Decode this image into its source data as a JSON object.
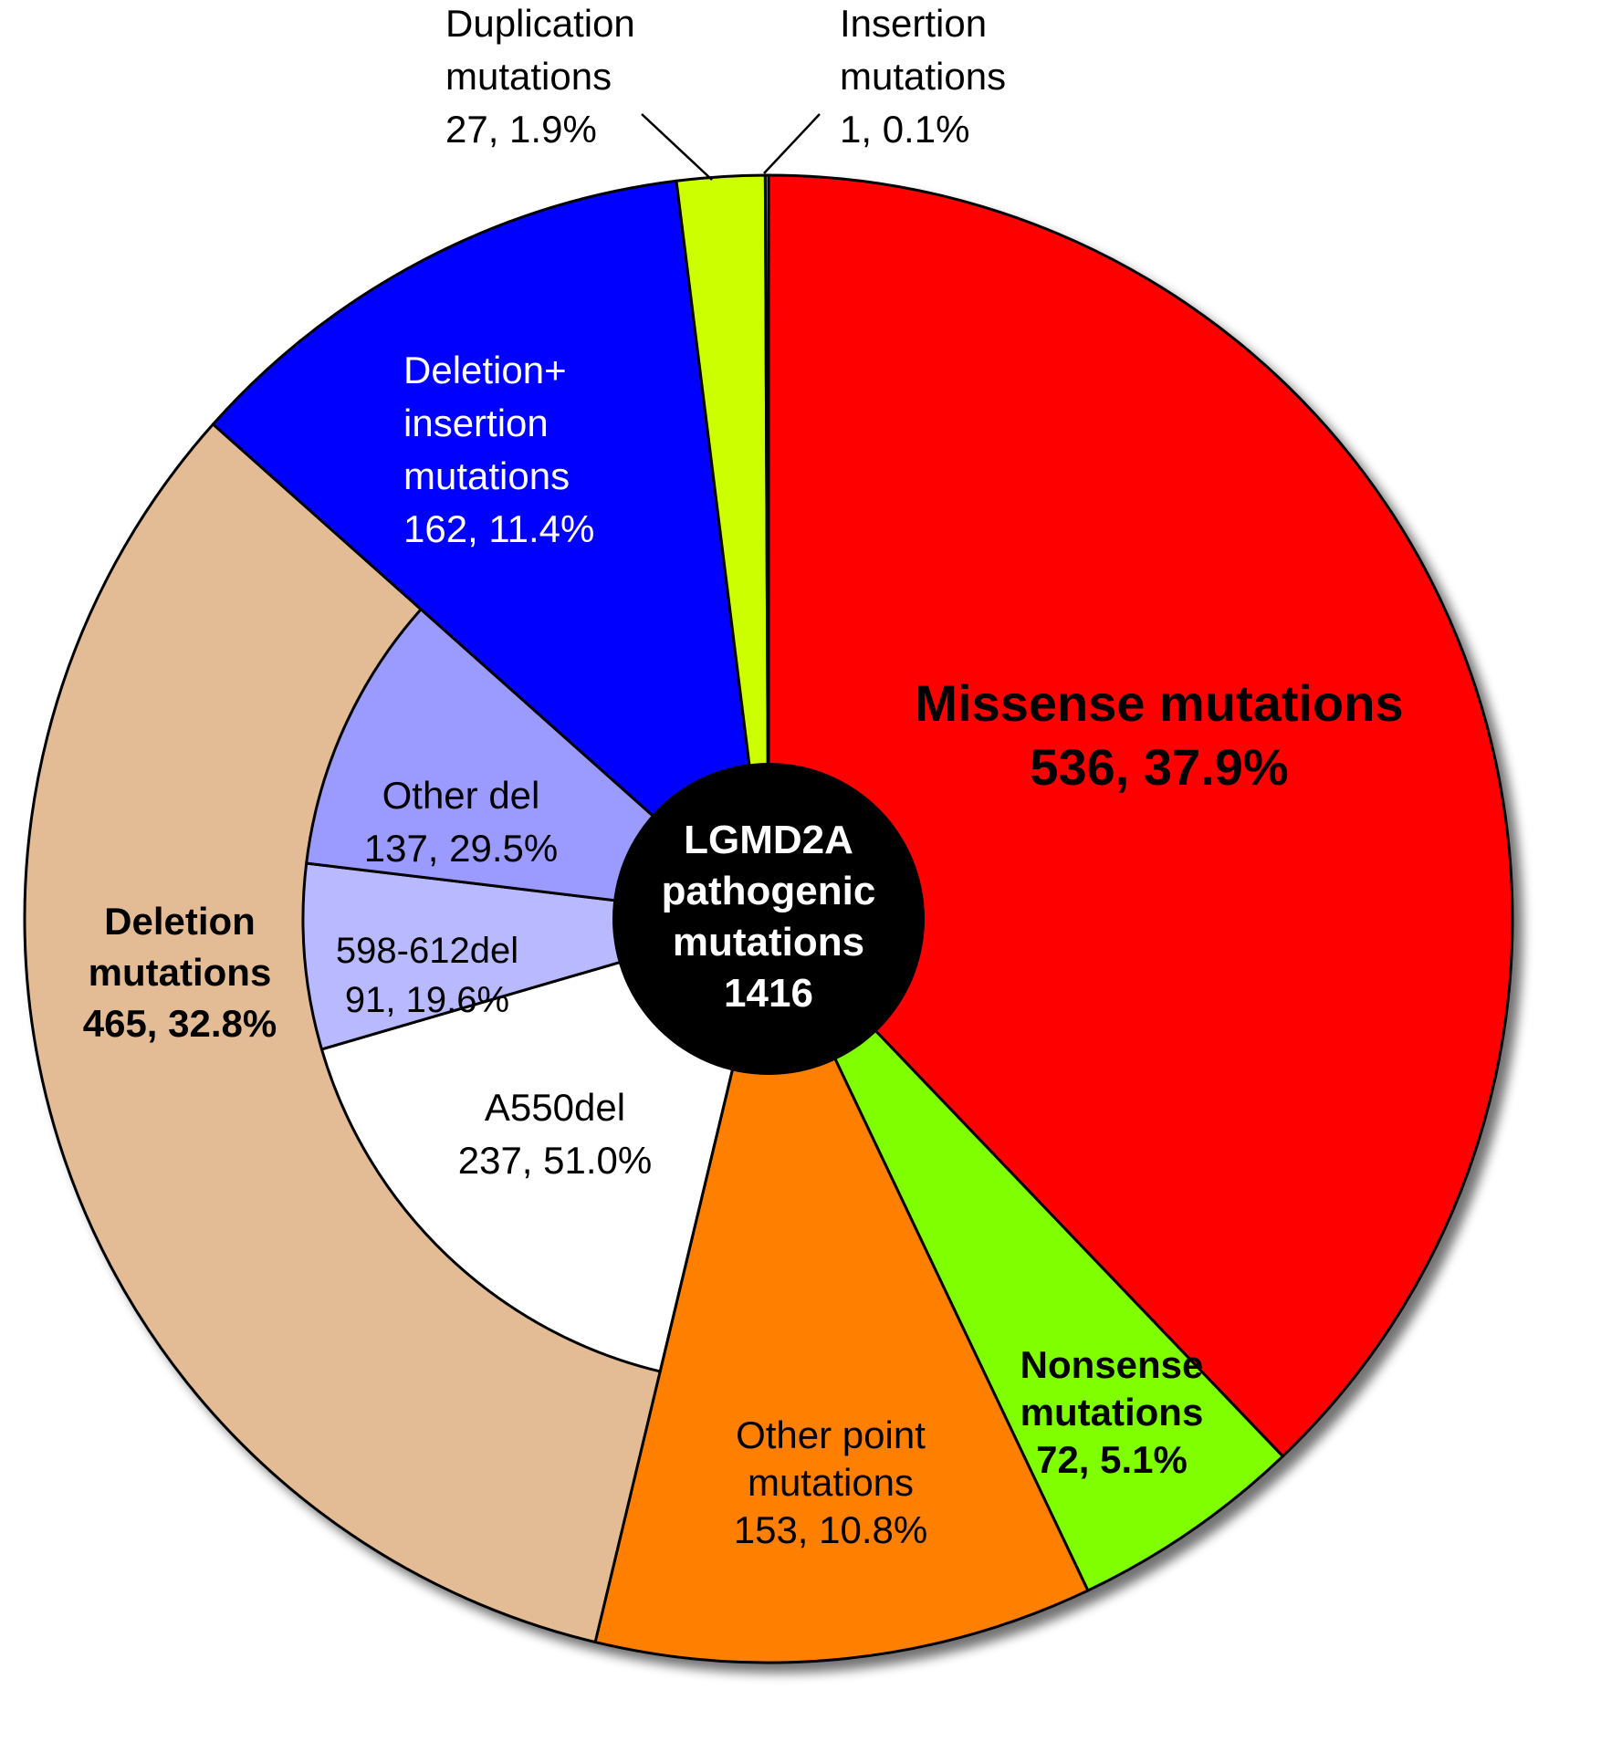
{
  "chart_data": {
    "type": "pie",
    "center_label": [
      "LGMD2A",
      "pathogenic",
      "mutations",
      "1416"
    ],
    "total": 1416,
    "slices": [
      {
        "name": "Missense mutations",
        "value": 536,
        "percent": "37.9%",
        "label": [
          "Missense mutations",
          "536, 37.9%"
        ],
        "color": "#ff0000",
        "label_color": "#000000",
        "bold": true
      },
      {
        "name": "Nonsense mutations",
        "value": 72,
        "percent": "5.1%",
        "label": [
          "Nonsense",
          "mutations",
          "72, 5.1%"
        ],
        "color": "#80ff00",
        "label_color": "#000000",
        "bold": true
      },
      {
        "name": "Other point mutations",
        "value": 153,
        "percent": "10.8%",
        "label": [
          "Other point",
          "mutations",
          "153, 10.8%"
        ],
        "color": "#ff8000",
        "label_color": "#000000",
        "bold": false
      },
      {
        "name": "Deletion mutations",
        "value": 465,
        "percent": "32.8%",
        "label": [
          "Deletion",
          "mutations",
          "465, 32.8%"
        ],
        "color": "#e3bc96",
        "label_color": "#000000",
        "bold": true
      },
      {
        "name": "Deletion+ insertion mutations",
        "value": 162,
        "percent": "11.4%",
        "label": [
          "Deletion+",
          "insertion",
          "mutations",
          "162, 11.4%"
        ],
        "color": "#0000ff",
        "label_color": "#ffffff",
        "bold": false
      },
      {
        "name": "Duplication mutations",
        "value": 27,
        "percent": "1.9%",
        "label": [
          "Duplication",
          "mutations",
          "27, 1.9%"
        ],
        "color": "#ccff00",
        "label_color": "#000000",
        "bold": false,
        "external": true
      },
      {
        "name": "Insertion mutations",
        "value": 1,
        "percent": "0.1%",
        "label": [
          "Insertion",
          "mutations",
          "1, 0.1%"
        ],
        "color": "#c8dcff",
        "label_color": "#000000",
        "bold": false,
        "external": true
      }
    ],
    "deletion_breakdown": [
      {
        "name": "A550del",
        "value": 237,
        "percent": "51.0%",
        "label": [
          "A550del",
          "237, 51.0%"
        ],
        "color": "#ffffff"
      },
      {
        "name": "598-612del",
        "value": 91,
        "percent": "19.6%",
        "label": [
          "598-612del",
          "91, 19.6%"
        ],
        "color": "#b9b9ff"
      },
      {
        "name": "Other del",
        "value": 137,
        "percent": "29.5%",
        "label": [
          "Other del",
          "137, 29.5%"
        ],
        "color": "#9b9bff"
      }
    ]
  }
}
